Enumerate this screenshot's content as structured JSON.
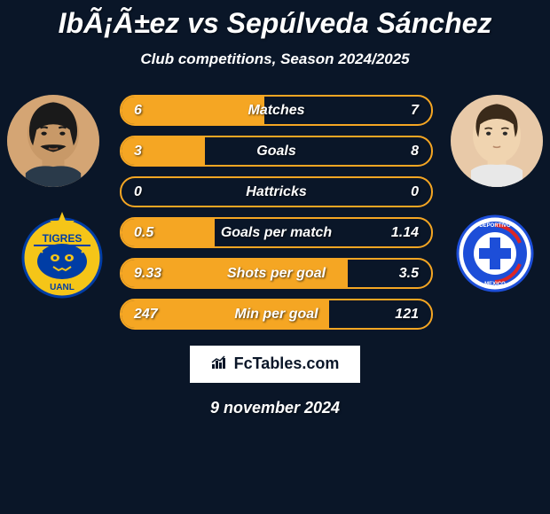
{
  "header": {
    "title": "IbÃ¡Ã±ez vs Sepúlveda Sánchez",
    "subtitle": "Club competitions, Season 2024/2025"
  },
  "players": {
    "left": {
      "name": "Ibáñez",
      "club": "Tigres UANL",
      "club_colors": {
        "primary": "#f5c518",
        "secondary": "#003da5",
        "border": "#ffffff"
      }
    },
    "right": {
      "name": "Sepúlveda Sánchez",
      "club": "Cruz Azul",
      "club_colors": {
        "primary": "#1d4ed8",
        "secondary": "#dc2626",
        "border": "#ffffff"
      }
    }
  },
  "stats": [
    {
      "label": "Matches",
      "left_value": "6",
      "right_value": "7",
      "left_pct": 46,
      "right_pct": 54
    },
    {
      "label": "Goals",
      "left_value": "3",
      "right_value": "8",
      "left_pct": 27,
      "right_pct": 73
    },
    {
      "label": "Hattricks",
      "left_value": "0",
      "right_value": "0",
      "left_pct": 0,
      "right_pct": 0
    },
    {
      "label": "Goals per match",
      "left_value": "0.5",
      "right_value": "1.14",
      "left_pct": 30,
      "right_pct": 70
    },
    {
      "label": "Shots per goal",
      "left_value": "9.33",
      "right_value": "3.5",
      "left_pct": 73,
      "right_pct": 27
    },
    {
      "label": "Min per goal",
      "left_value": "247",
      "right_value": "121",
      "left_pct": 67,
      "right_pct": 33
    }
  ],
  "styling": {
    "bar_border_color": "#f5a623",
    "bar_fill_color": "#f5a623",
    "bar_bg_color": "transparent",
    "text_color": "#ffffff"
  },
  "footer": {
    "attribution": "FcTables.com",
    "date": "9 november 2024"
  }
}
